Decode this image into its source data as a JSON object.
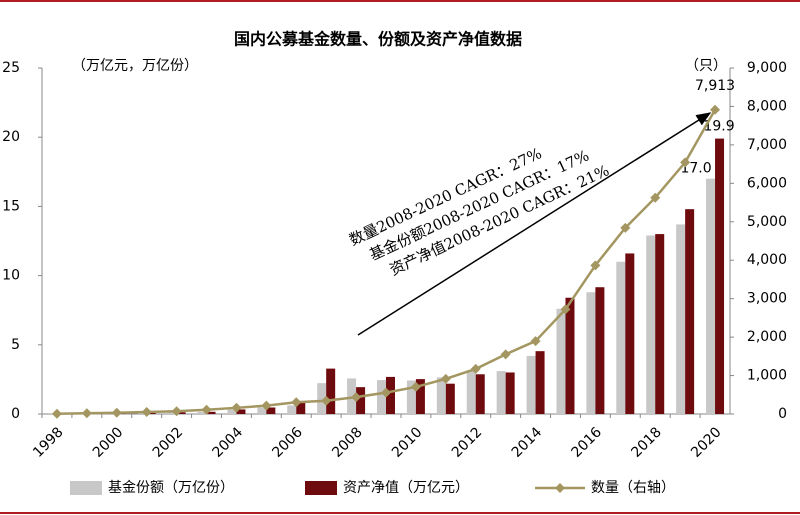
{
  "chart_data": {
    "type": "bar-line",
    "title": "国内公募基金数量、份额及资产净值数据",
    "y_label": "（万亿元，万亿份）",
    "y2_label": "（只）",
    "annotations": [
      "数量2008-2020 CAGR：27%",
      "基金份额2008-2020 CAGR：17%",
      "资产净值2008-2020 CAGR：21%"
    ],
    "categories": [
      "1998",
      null,
      "2000",
      null,
      "2002",
      null,
      "2004",
      null,
      "2006",
      null,
      "2008",
      null,
      "2010",
      null,
      "2012",
      null,
      "2014",
      null,
      "2016",
      null,
      "2018",
      null,
      "2020"
    ],
    "series": [
      {
        "name": "基金份额（万亿份）",
        "type": "bar",
        "color": "#c8c8c8",
        "values": [
          0.01,
          0.05,
          0.08,
          0.08,
          0.13,
          0.16,
          0.32,
          0.47,
          0.62,
          2.23,
          2.57,
          2.45,
          2.42,
          2.65,
          3.17,
          3.1,
          4.2,
          7.6,
          8.8,
          11.0,
          12.9,
          13.7,
          17.0
        ],
        "value_labels": [
          null,
          null,
          null,
          null,
          null,
          null,
          null,
          null,
          null,
          null,
          null,
          null,
          null,
          null,
          null,
          null,
          null,
          null,
          null,
          null,
          null,
          null,
          "17.0"
        ]
      },
      {
        "name": "资产净值（万亿元）",
        "type": "bar",
        "color": "#6e0b0e",
        "values": [
          0.01,
          0.05,
          0.08,
          0.08,
          0.13,
          0.16,
          0.33,
          0.47,
          0.86,
          3.28,
          1.94,
          2.68,
          2.52,
          2.19,
          2.87,
          3.0,
          4.54,
          8.4,
          9.16,
          11.6,
          13.0,
          14.8,
          19.9
        ],
        "value_labels": [
          null,
          null,
          null,
          null,
          null,
          null,
          null,
          null,
          null,
          null,
          null,
          null,
          null,
          null,
          null,
          null,
          null,
          null,
          null,
          null,
          null,
          null,
          "19.9"
        ]
      },
      {
        "name": "数量（右轴）",
        "type": "line",
        "axis": "y2",
        "color": "#a39660",
        "values": [
          6,
          19,
          34,
          51,
          71,
          110,
          161,
          218,
          307,
          346,
          439,
          557,
          704,
          914,
          1173,
          1552,
          1897,
          2722,
          3867,
          4841,
          5626,
          6544,
          7913
        ],
        "value_labels": [
          null,
          null,
          null,
          null,
          null,
          null,
          null,
          null,
          null,
          null,
          null,
          null,
          null,
          null,
          null,
          null,
          null,
          null,
          null,
          null,
          null,
          null,
          "7,913"
        ]
      }
    ],
    "ylim": [
      0,
      25
    ],
    "yticks": [
      0,
      5,
      10,
      15,
      20,
      25
    ],
    "y2lim": [
      0,
      9000
    ],
    "y2ticks": [
      {
        "value": 0,
        "label": "0"
      },
      {
        "value": 1000,
        "label": "1,000"
      },
      {
        "value": 2000,
        "label": "2,000"
      },
      {
        "value": 3000,
        "label": "3,000"
      },
      {
        "value": 4000,
        "label": "4,000"
      },
      {
        "value": 5000,
        "label": "5,000"
      },
      {
        "value": 6000,
        "label": "6,000"
      },
      {
        "value": 7000,
        "label": "7,000"
      },
      {
        "value": 8000,
        "label": "8,000"
      },
      {
        "value": 9000,
        "label": "9,000"
      }
    ],
    "grid": false,
    "legend": "bottom"
  }
}
